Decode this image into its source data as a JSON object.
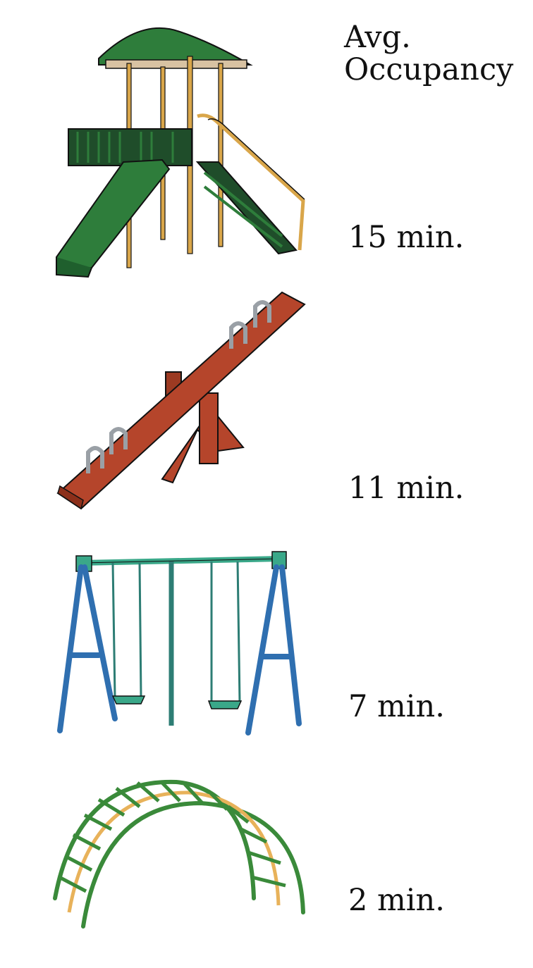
{
  "chart_data": {
    "type": "table",
    "header": {
      "line1": "Avg.",
      "line2": "Occupancy"
    },
    "rows": [
      {
        "icon": "play-structure-icon",
        "value": "15 min."
      },
      {
        "icon": "seesaw-icon",
        "value": "11 min."
      },
      {
        "icon": "swing-set-icon",
        "value": "7 min."
      },
      {
        "icon": "arch-climber-icon",
        "value": "2 min."
      }
    ],
    "colors": {
      "play_roof": "#2e7d3b",
      "play_post": "#d9a64a",
      "seesaw": "#b5452b",
      "swing_frame": "#2f6fb0",
      "swing_top": "#3aa889",
      "climber": "#3a8a3a",
      "climber_accent": "#e8b25a"
    }
  }
}
